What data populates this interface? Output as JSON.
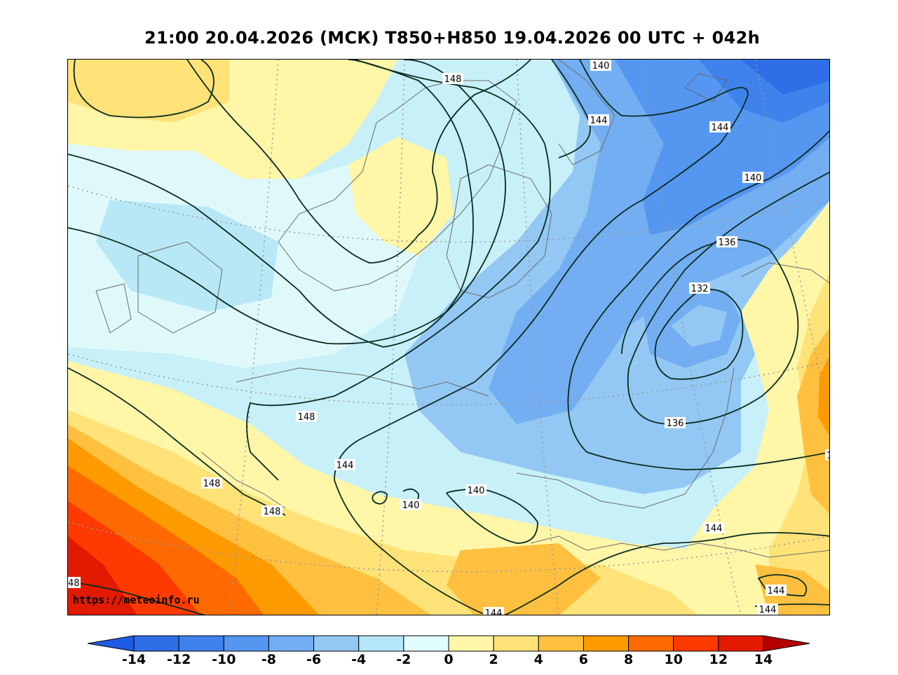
{
  "title": "21:00 20.04.2026 (МСК) T850+H850 19.04.2026 00 UTC + 042h",
  "watermark": "https://meteoinfo.ru",
  "colorbar": {
    "ticks": [
      "-14",
      "-12",
      "-10",
      "-8",
      "-6",
      "-4",
      "-2",
      "0",
      "2",
      "4",
      "6",
      "8",
      "10",
      "12",
      "14"
    ],
    "under_color": "#1e5ae6",
    "over_color": "#b40000",
    "colors": [
      "#2e6fe8",
      "#3f82ec",
      "#5596f0",
      "#73aef2",
      "#93c8f4",
      "#b4e8f8",
      "#e2fdfd",
      "#fff6a8",
      "#ffe278",
      "#ffc040",
      "#ff9a00",
      "#ff6a00",
      "#ff3a00",
      "#e21a00"
    ]
  },
  "isohypse_labels": [
    {
      "text": "148"
    },
    {
      "text": "140"
    },
    {
      "text": "144"
    },
    {
      "text": "144"
    },
    {
      "text": "140"
    },
    {
      "text": "136"
    },
    {
      "text": "132"
    },
    {
      "text": "136"
    },
    {
      "text": "148"
    },
    {
      "text": "144"
    },
    {
      "text": "148"
    },
    {
      "text": "148"
    },
    {
      "text": "140"
    },
    {
      "text": "140"
    },
    {
      "text": "144"
    },
    {
      "text": "144"
    },
    {
      "text": "144"
    },
    {
      "text": "144"
    },
    {
      "text": "48"
    },
    {
      "text": "1"
    }
  ]
}
